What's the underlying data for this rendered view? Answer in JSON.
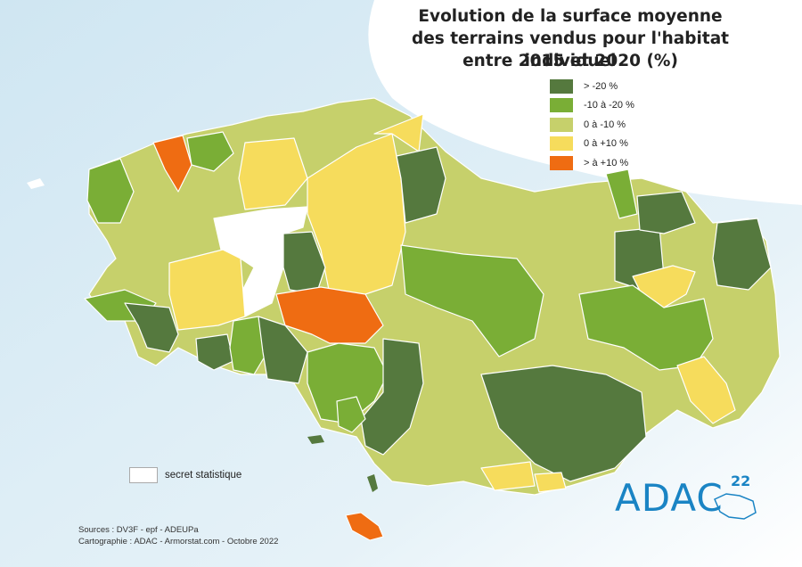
{
  "title": {
    "line1": "Evolution de la surface moyenne",
    "line2": "des terrains vendus pour l'habitat individuel",
    "line3": "entre 2015 et 2020 (%)"
  },
  "legend": {
    "items": [
      {
        "label": "> -20 %",
        "color": "#55793e"
      },
      {
        "label": "-10 à -20 %",
        "color": "#7aae36"
      },
      {
        "label": "0 à -10 %",
        "color": "#c6d06b"
      },
      {
        "label": "0 à +10 %",
        "color": "#f6dc5c"
      },
      {
        "label": "> à +10 %",
        "color": "#ef6c12"
      }
    ],
    "secret_label": "secret statistique"
  },
  "sources": {
    "line1": "Sources : DV3F - epf - ADEUPa",
    "line2": "Cartographie : ADAC - Armorstat.com - Octobre 2022"
  },
  "logo": {
    "text": "ADAC",
    "number": "22"
  },
  "colors": {
    "sea": "#dcecf5",
    "land_outline": "#ffffff"
  }
}
